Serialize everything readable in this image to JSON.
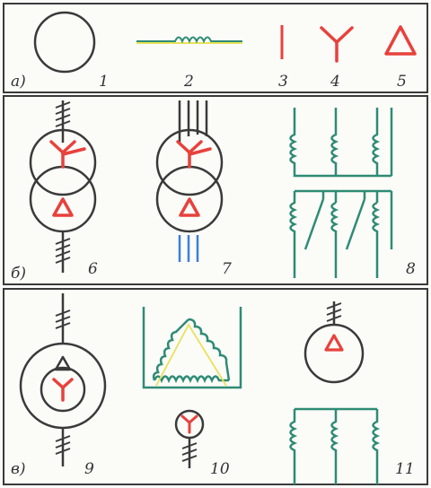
{
  "colors": {
    "line": "#3a3a3a",
    "red": "#e8413c",
    "green": "#2e8b74",
    "blue": "#3b7fd6",
    "yellow": "#e7e35a",
    "background": "#fbfbf8"
  },
  "rows": [
    {
      "letter": "а)"
    },
    {
      "letter": "б)"
    },
    {
      "letter": "в)"
    }
  ],
  "figures": [
    {
      "number": "1"
    },
    {
      "number": "2"
    },
    {
      "number": "3"
    },
    {
      "number": "4"
    },
    {
      "number": "5"
    },
    {
      "number": "6"
    },
    {
      "number": "7"
    },
    {
      "number": "8"
    },
    {
      "number": "9"
    },
    {
      "number": "10"
    },
    {
      "number": "11"
    }
  ]
}
